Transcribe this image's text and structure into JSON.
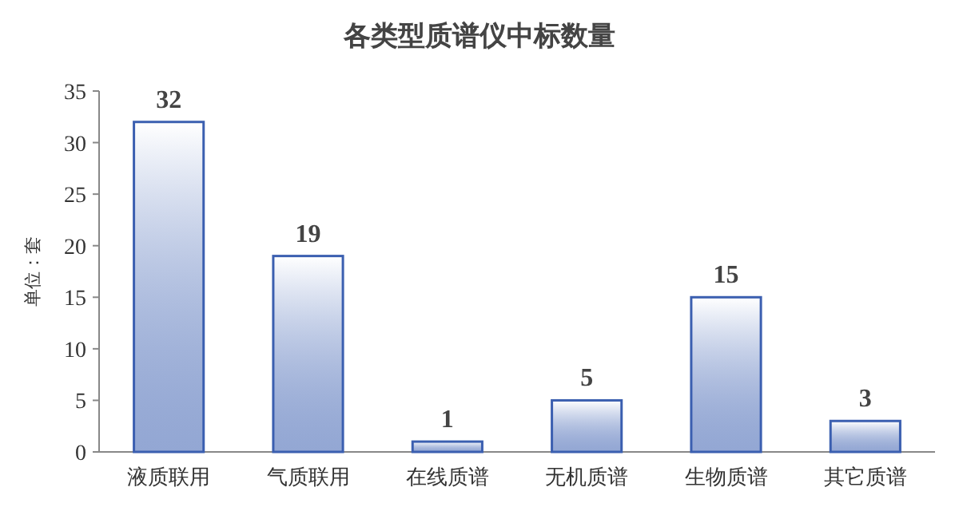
{
  "chart_data": {
    "type": "bar",
    "title": "各类型质谱仪中标数量",
    "ylabel": "单位：套",
    "categories": [
      "液质联用",
      "气质联用",
      "在线质谱",
      "无机质谱",
      "生物质谱",
      "其它质谱"
    ],
    "values": [
      32,
      19,
      1,
      5,
      15,
      3
    ],
    "color": "#3b5fb0",
    "ylim": [
      0,
      35
    ],
    "yticks": [
      0,
      5,
      10,
      15,
      20,
      25,
      30,
      35
    ],
    "grid": false,
    "data_labels": true
  }
}
